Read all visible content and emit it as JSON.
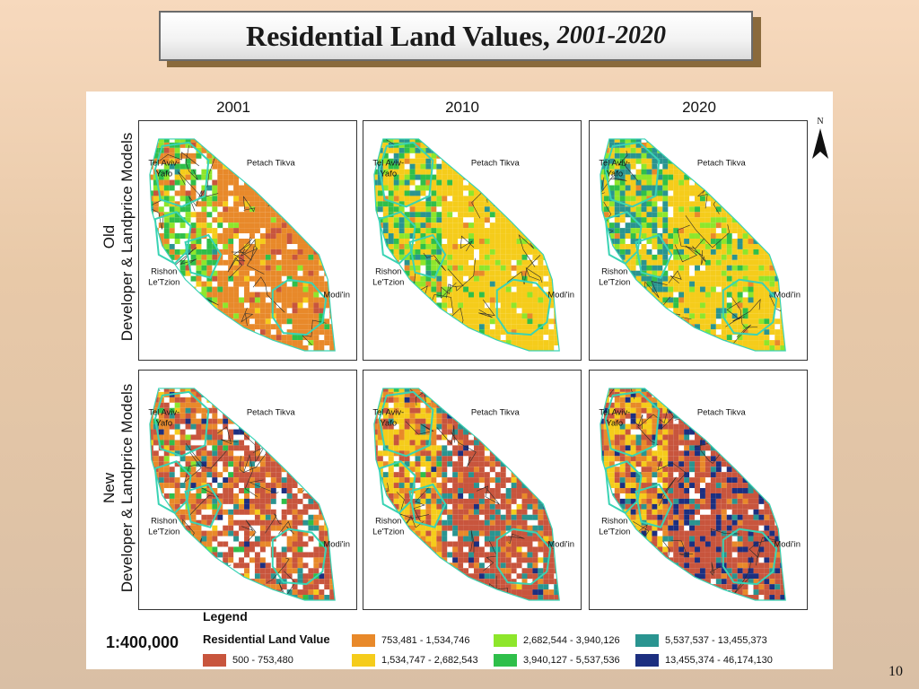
{
  "title": {
    "main": "Residential Land Values,",
    "years": "2001-2020"
  },
  "columns": [
    "2001",
    "2010",
    "2020"
  ],
  "rows": [
    {
      "line1": "Old",
      "line2": "Developer & Landprice Models"
    },
    {
      "line1": "New",
      "line2": "Developer & Landprice Models"
    }
  ],
  "cities": {
    "tel_aviv": [
      "Tel Aviv-",
      "Yafo"
    ],
    "petach_tikva": "Petach Tikva",
    "rishon": [
      "Rishon",
      "Le'Tzion"
    ],
    "modiin": "Modi'in"
  },
  "north_label": "N",
  "legend": {
    "title": "Legend",
    "scale": "1:400,000",
    "subtitle": "Residential Land Value",
    "classes": [
      {
        "label": "500 - 753,480",
        "color": "#c8553d"
      },
      {
        "label": "753,481 - 1,534,746",
        "color": "#e8892a"
      },
      {
        "label": "1,534,747 - 2,682,543",
        "color": "#f5cc1b"
      },
      {
        "label": "2,682,544 - 3,940,126",
        "color": "#8ee62b"
      },
      {
        "label": "3,940,127 - 5,537,536",
        "color": "#2fbf4a"
      },
      {
        "label": "5,537,537 - 13,455,373",
        "color": "#2a9490"
      },
      {
        "label": "13,455,374 - 46,174,130",
        "color": "#1c2f80"
      }
    ]
  },
  "panel_mix": [
    [
      {
        "year": "2001",
        "dominant": "753,481 - 1,534,746"
      },
      {
        "year": "2010",
        "dominant": "1,534,747 - 2,682,543"
      },
      {
        "year": "2020",
        "dominant": "1,534,747 - 2,682,543"
      }
    ],
    [
      {
        "year": "2001",
        "dominant": "500 - 753,480"
      },
      {
        "year": "2010",
        "dominant": "500 - 753,480"
      },
      {
        "year": "2020",
        "dominant": "500 - 753,480"
      }
    ]
  ],
  "page_number": "10"
}
